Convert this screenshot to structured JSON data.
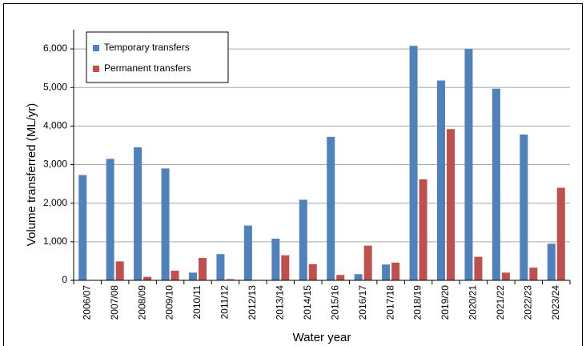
{
  "chart_data": {
    "type": "bar",
    "x_label": "Water year",
    "y_label": "Volume transferred (ML/yr)",
    "categories": [
      "2006/07",
      "2007/08",
      "2008/09",
      "2009/10",
      "2010/11",
      "2011/12",
      "2012/13",
      "2013/14",
      "2014/15",
      "2015/16",
      "2016/17",
      "2017/18",
      "2018/19",
      "2019/20",
      "2020/21",
      "2021/22",
      "2022/23",
      "2023/24"
    ],
    "series": [
      {
        "name": "Temporary transfers",
        "color": "#4f81bd",
        "values": [
          2730,
          3150,
          3450,
          2900,
          200,
          680,
          1420,
          1080,
          2090,
          3720,
          160,
          410,
          6080,
          5180,
          6000,
          4970,
          3780,
          950
        ]
      },
      {
        "name": "Permanent transfers",
        "color": "#c0504d",
        "values": [
          0,
          490,
          90,
          250,
          580,
          30,
          10,
          650,
          420,
          140,
          900,
          460,
          2620,
          3920,
          610,
          200,
          330,
          2400
        ]
      }
    ],
    "ylim": [
      0,
      6500
    ],
    "yticks": [
      0,
      {
        "value": 1000,
        "label": "1,000"
      },
      {
        "value": 2000,
        "label": "2,000"
      },
      {
        "value": 3000,
        "label": "3,000"
      },
      {
        "value": 4000,
        "label": "4,000"
      },
      {
        "value": 5000,
        "label": "5,000"
      },
      {
        "value": 6000,
        "label": "6,000"
      }
    ],
    "grid": true,
    "legend": "top-left"
  }
}
